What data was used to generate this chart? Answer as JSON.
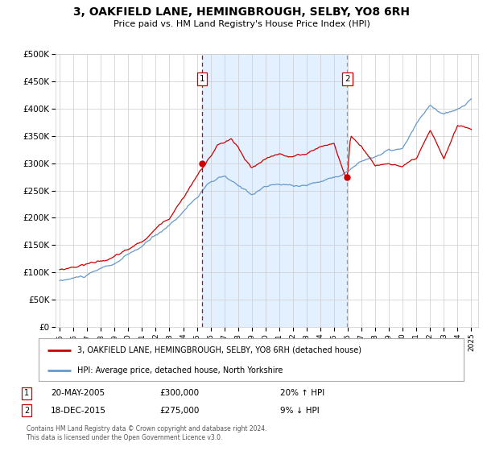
{
  "title": "3, OAKFIELD LANE, HEMINGBROUGH, SELBY, YO8 6RH",
  "subtitle": "Price paid vs. HM Land Registry's House Price Index (HPI)",
  "legend_line1": "3, OAKFIELD LANE, HEMINGBROUGH, SELBY, YO8 6RH (detached house)",
  "legend_line2": "HPI: Average price, detached house, North Yorkshire",
  "annotation1_label": "1",
  "annotation1_date": "20-MAY-2005",
  "annotation1_price": "£300,000",
  "annotation1_hpi": "20% ↑ HPI",
  "annotation2_label": "2",
  "annotation2_date": "18-DEC-2015",
  "annotation2_price": "£275,000",
  "annotation2_hpi": "9% ↓ HPI",
  "footer": "Contains HM Land Registry data © Crown copyright and database right 2024.\nThis data is licensed under the Open Government Licence v3.0.",
  "red_color": "#cc0000",
  "blue_color": "#6699cc",
  "bg_shaded": "#ddeeff",
  "sale1_year": 2005.38,
  "sale2_year": 2015.96,
  "sale1_price": 300000,
  "sale2_price": 275000,
  "ylim": [
    0,
    500000
  ],
  "xlim_start": 1994.7,
  "xlim_end": 2025.5
}
